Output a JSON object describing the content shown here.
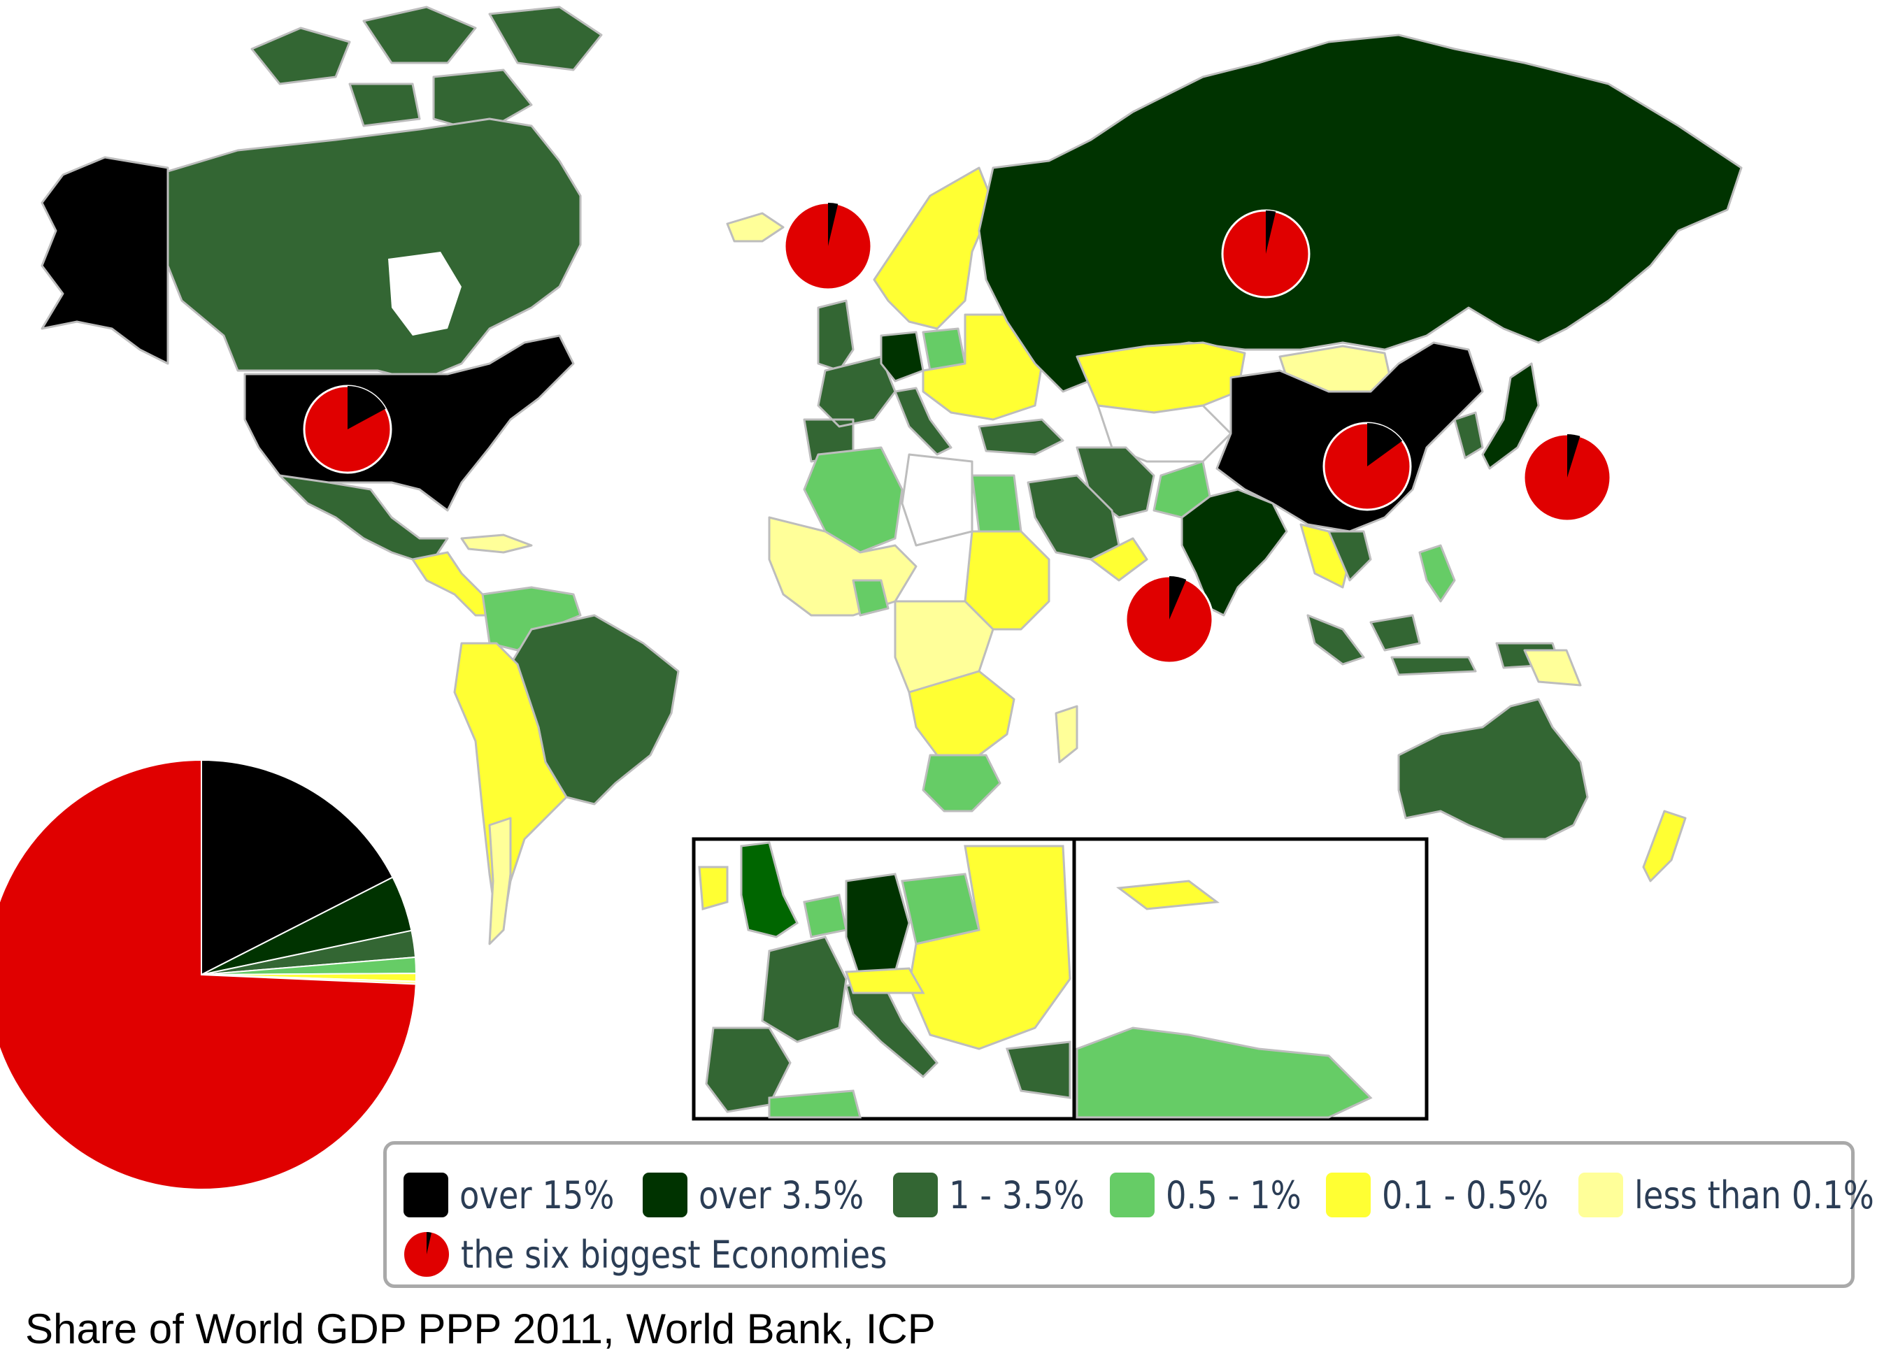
{
  "colors": {
    "over_15": "#000000",
    "over_3_5": "#003300",
    "one_to_3_5": "#336633",
    "half_to_1": "#66cc66",
    "tenth_to_half": "#ffff33",
    "less_than_tenth": "#ffff99",
    "biggest_economies": "#e00000",
    "no_data": "#ffffff",
    "border": "#bbbbbb"
  },
  "legend": {
    "items": [
      {
        "label": "over 15%",
        "color": "#000000"
      },
      {
        "label": "over 3.5%",
        "color": "#003300"
      },
      {
        "label": "1 - 3.5%",
        "color": "#336633"
      },
      {
        "label": "0.5 - 1%",
        "color": "#66cc66"
      },
      {
        "label": "0.1 - 0.5%",
        "color": "#ffff33"
      },
      {
        "label": "less than 0.1%",
        "color": "#ffff99"
      }
    ],
    "economies_label": "the six biggest Economies",
    "economies_icon": "red-pie-icon"
  },
  "caption": "Share of World GDP PPP 2011, World Bank, ICP",
  "world_pie": {
    "type": "pie",
    "slices": [
      {
        "share": 17.5,
        "color": "#000000"
      },
      {
        "share": 4.2,
        "color": "#003300"
      },
      {
        "share": 2.0,
        "color": "#336633"
      },
      {
        "share": 1.2,
        "color": "#66cc66"
      },
      {
        "share": 0.6,
        "color": "#ffff33"
      },
      {
        "share": 0.2,
        "color": "#ffff99"
      },
      {
        "share": 74.3,
        "color": "#e00000"
      }
    ]
  },
  "economy_pies": [
    {
      "region": "united-states",
      "share": 17.1
    },
    {
      "region": "china",
      "share": 15.0
    },
    {
      "region": "india",
      "share": 6.4
    },
    {
      "region": "russia",
      "share": 3.7
    },
    {
      "region": "japan",
      "share": 4.8
    },
    {
      "region": "germany",
      "share": 3.7
    }
  ]
}
